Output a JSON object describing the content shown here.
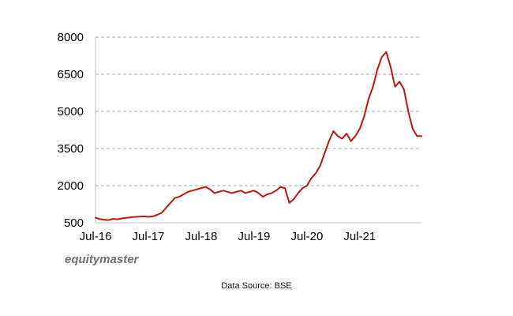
{
  "chart_data": {
    "type": "line",
    "title": "",
    "xlabel": "",
    "ylabel": "",
    "ylim": [
      500,
      8000
    ],
    "yticks": [
      500,
      2000,
      3500,
      5000,
      6500,
      8000
    ],
    "ytick_labels": [
      "500",
      "2000",
      "3500",
      "5000",
      "6500",
      "8000"
    ],
    "xlim": [
      "2016-07",
      "2022-09"
    ],
    "xticks": [
      "2016-07",
      "2017-07",
      "2018-07",
      "2019-07",
      "2020-07",
      "2021-07"
    ],
    "xtick_labels": [
      "Jul-16",
      "Jul-17",
      "Jul-18",
      "Jul-19",
      "Jul-20",
      "Jul-21"
    ],
    "grid": "horizontal-dashed",
    "line_color": "#c0150e",
    "series": [
      {
        "x": [
          "2016-07",
          "2016-08",
          "2016-09",
          "2016-10",
          "2016-11",
          "2016-12",
          "2017-01",
          "2017-02",
          "2017-03",
          "2017-04",
          "2017-05",
          "2017-06",
          "2017-07",
          "2017-08",
          "2017-09",
          "2017-10",
          "2017-11",
          "2017-12",
          "2018-01",
          "2018-02",
          "2018-03",
          "2018-04",
          "2018-05",
          "2018-06",
          "2018-07",
          "2018-08",
          "2018-09",
          "2018-10",
          "2018-11",
          "2018-12",
          "2019-01",
          "2019-02",
          "2019-03",
          "2019-04",
          "2019-05",
          "2019-06",
          "2019-07",
          "2019-08",
          "2019-09",
          "2019-10",
          "2019-11",
          "2019-12",
          "2020-01",
          "2020-02",
          "2020-03",
          "2020-04",
          "2020-05",
          "2020-06",
          "2020-07",
          "2020-08",
          "2020-09",
          "2020-10",
          "2020-11",
          "2020-12",
          "2021-01",
          "2021-02",
          "2021-03",
          "2021-04",
          "2021-05",
          "2021-06",
          "2021-07",
          "2021-08",
          "2021-09",
          "2021-10",
          "2021-11",
          "2021-12",
          "2022-01",
          "2022-02",
          "2022-03",
          "2022-04",
          "2022-05",
          "2022-06",
          "2022-07",
          "2022-08",
          "2022-09"
        ],
        "values": [
          700,
          650,
          620,
          610,
          660,
          640,
          680,
          700,
          720,
          740,
          750,
          760,
          740,
          760,
          820,
          900,
          1100,
          1300,
          1500,
          1550,
          1650,
          1750,
          1800,
          1850,
          1900,
          1950,
          1850,
          1700,
          1750,
          1800,
          1750,
          1700,
          1750,
          1800,
          1700,
          1750,
          1800,
          1700,
          1550,
          1650,
          1700,
          1800,
          1950,
          1900,
          1300,
          1450,
          1700,
          1900,
          2000,
          2300,
          2500,
          2800,
          3300,
          3800,
          4200,
          4000,
          3900,
          4100,
          3800,
          4000,
          4300,
          4800,
          5500,
          6000,
          6700,
          7200,
          7400,
          6800,
          6000,
          6200,
          5900,
          5000,
          4300,
          4000,
          4000
        ]
      }
    ]
  },
  "brand": "equitymaster",
  "source": "Data Source: BSE"
}
